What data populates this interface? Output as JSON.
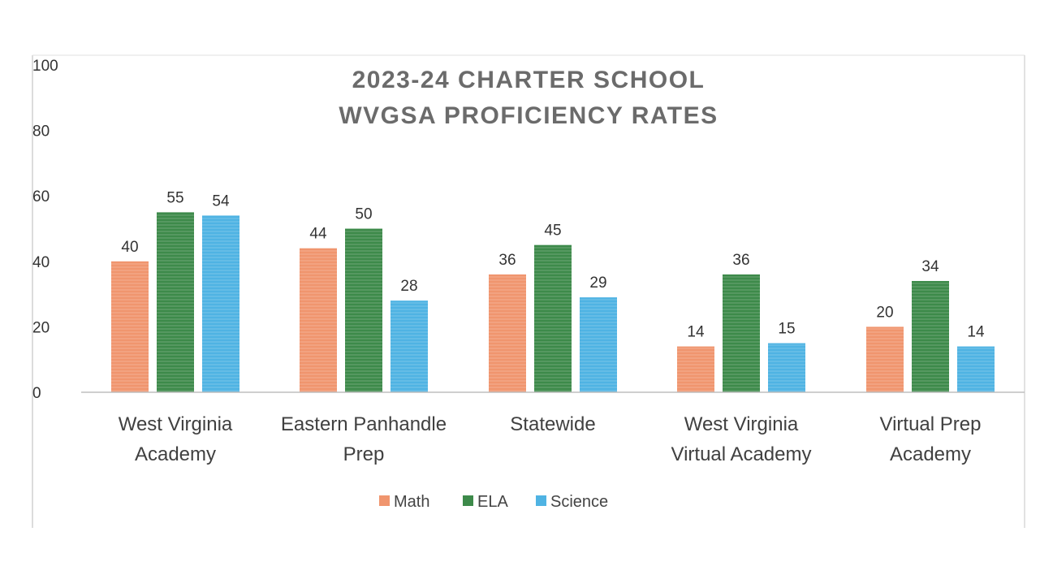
{
  "chart_data": {
    "type": "bar",
    "title_lines": [
      "2023-24 CHARTER SCHOOL",
      "WVGSA PROFICIENCY RATES"
    ],
    "categories": [
      [
        "West Virginia",
        "Academy"
      ],
      [
        "Eastern Panhandle",
        "Prep"
      ],
      [
        "Statewide"
      ],
      [
        "West Virginia",
        "Virtual Academy"
      ],
      [
        "Virtual Prep",
        "Academy"
      ]
    ],
    "series": [
      {
        "name": "Math",
        "color": "#f0956e",
        "values": [
          40,
          44,
          36,
          14,
          20
        ]
      },
      {
        "name": "ELA",
        "color": "#3d8a4a",
        "values": [
          55,
          50,
          45,
          36,
          34
        ]
      },
      {
        "name": "Science",
        "color": "#4fb3e3",
        "values": [
          54,
          28,
          29,
          15,
          14
        ]
      }
    ],
    "ylim": [
      0,
      100
    ],
    "yticks": [
      "0",
      "20",
      "40",
      "60",
      "80",
      "100"
    ],
    "legend_position": "bottom",
    "grid": false
  }
}
